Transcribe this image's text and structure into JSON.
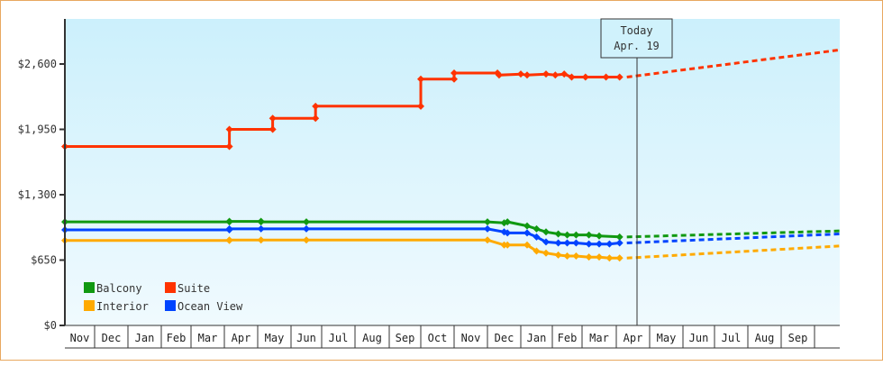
{
  "chart_data": {
    "type": "line",
    "title": "",
    "xlabel": "",
    "ylabel": "",
    "ylim": [
      0,
      2925
    ],
    "y_ticks": [
      {
        "label": "$0",
        "value": 0
      },
      {
        "label": "$650",
        "value": 650
      },
      {
        "label": "$1,300",
        "value": 1300
      },
      {
        "label": "$1,950",
        "value": 1950
      },
      {
        "label": "$2,600",
        "value": 2600
      }
    ],
    "x_months": [
      "Nov",
      "Dec",
      "Jan",
      "Feb",
      "Mar",
      "Apr",
      "May",
      "Jun",
      "Jul",
      "Aug",
      "Sep",
      "Oct",
      "Nov",
      "Dec",
      "Jan",
      "Feb",
      "Mar",
      "Apr",
      "May",
      "Jun",
      "Jul",
      "Aug",
      "Sep"
    ],
    "today_marker": {
      "line1": "Today",
      "line2": "Apr. 19"
    },
    "legend": [
      {
        "name": "Balcony",
        "color": "#119911"
      },
      {
        "name": "Suite",
        "color": "#ff3300"
      },
      {
        "name": "Interior",
        "color": "#ffaa00"
      },
      {
        "name": "Ocean View",
        "color": "#0044ff"
      }
    ],
    "series": [
      {
        "name": "Suite",
        "color": "#ff3300",
        "points": [
          [
            0.0,
            1780
          ],
          [
            5.15,
            1780
          ],
          [
            5.15,
            1950
          ],
          [
            6.45,
            1950
          ],
          [
            6.45,
            2060
          ],
          [
            7.8,
            2060
          ],
          [
            7.8,
            2180
          ],
          [
            11.0,
            2180
          ],
          [
            11.0,
            2450
          ],
          [
            12.0,
            2450
          ],
          [
            12.0,
            2510
          ],
          [
            13.3,
            2510
          ],
          [
            13.35,
            2490
          ],
          [
            14.0,
            2500
          ],
          [
            14.2,
            2490
          ],
          [
            14.8,
            2500
          ],
          [
            15.1,
            2490
          ],
          [
            15.4,
            2500
          ],
          [
            15.65,
            2470
          ],
          [
            16.1,
            2470
          ],
          [
            16.7,
            2470
          ],
          [
            17.1,
            2470
          ]
        ],
        "forecast": [
          [
            17.1,
            2470
          ],
          [
            23.0,
            2740
          ]
        ]
      },
      {
        "name": "Balcony",
        "color": "#119911",
        "points": [
          [
            0.0,
            1030
          ],
          [
            5.15,
            1030
          ],
          [
            5.15,
            1035
          ],
          [
            6.1,
            1035
          ],
          [
            6.1,
            1030
          ],
          [
            7.5,
            1030
          ],
          [
            13.0,
            1030
          ],
          [
            13.5,
            1020
          ],
          [
            13.6,
            1030
          ],
          [
            14.2,
            990
          ],
          [
            14.5,
            960
          ],
          [
            14.8,
            930
          ],
          [
            15.2,
            910
          ],
          [
            15.5,
            900
          ],
          [
            15.8,
            900
          ],
          [
            16.2,
            900
          ],
          [
            16.5,
            890
          ],
          [
            17.1,
            880
          ]
        ],
        "forecast": [
          [
            17.1,
            880
          ],
          [
            23.0,
            940
          ]
        ]
      },
      {
        "name": "Ocean View",
        "color": "#0044ff",
        "points": [
          [
            0.0,
            950
          ],
          [
            5.15,
            950
          ],
          [
            5.15,
            960
          ],
          [
            6.1,
            960
          ],
          [
            7.5,
            960
          ],
          [
            13.0,
            960
          ],
          [
            13.5,
            930
          ],
          [
            13.6,
            920
          ],
          [
            14.2,
            920
          ],
          [
            14.5,
            880
          ],
          [
            14.8,
            830
          ],
          [
            15.2,
            820
          ],
          [
            15.5,
            820
          ],
          [
            15.8,
            820
          ],
          [
            16.2,
            810
          ],
          [
            16.5,
            810
          ],
          [
            16.8,
            810
          ],
          [
            17.1,
            820
          ]
        ],
        "forecast": [
          [
            17.1,
            820
          ],
          [
            23.0,
            910
          ]
        ]
      },
      {
        "name": "Interior",
        "color": "#ffaa00",
        "points": [
          [
            0.0,
            845
          ],
          [
            5.15,
            845
          ],
          [
            5.15,
            850
          ],
          [
            6.1,
            850
          ],
          [
            7.5,
            850
          ],
          [
            13.0,
            850
          ],
          [
            13.5,
            800
          ],
          [
            13.6,
            800
          ],
          [
            14.2,
            800
          ],
          [
            14.5,
            740
          ],
          [
            14.8,
            720
          ],
          [
            15.2,
            700
          ],
          [
            15.5,
            690
          ],
          [
            15.8,
            690
          ],
          [
            16.2,
            680
          ],
          [
            16.5,
            680
          ],
          [
            16.8,
            670
          ],
          [
            17.1,
            670
          ]
        ],
        "forecast": [
          [
            17.1,
            670
          ],
          [
            23.0,
            790
          ]
        ]
      }
    ]
  }
}
